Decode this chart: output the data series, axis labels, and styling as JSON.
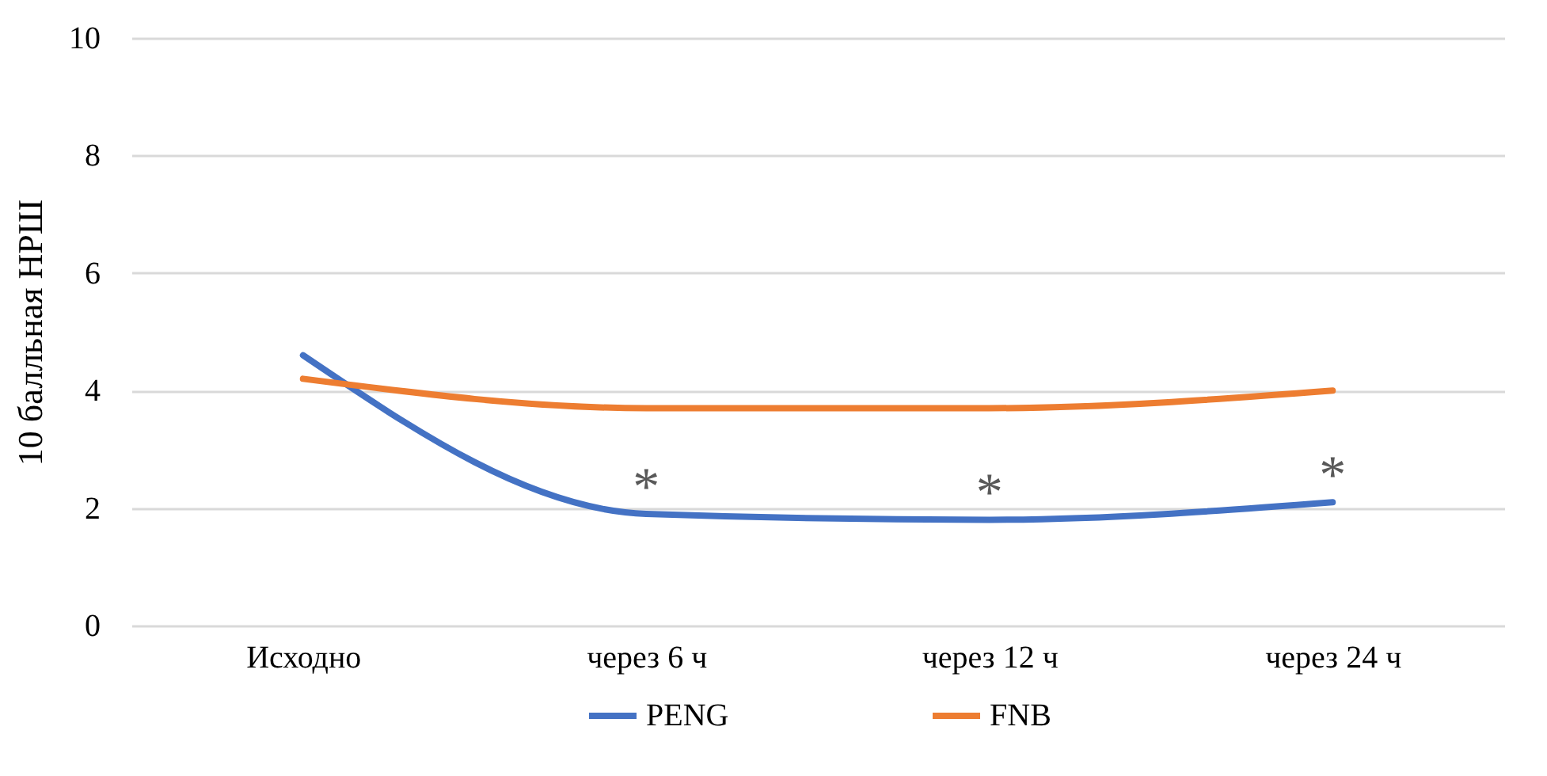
{
  "chart_data": {
    "type": "line",
    "ylabel": "10 балльная НРШ",
    "categories": [
      "Исходно",
      "через 6 ч",
      "через 12 ч",
      "через 24 ч"
    ],
    "series": [
      {
        "name": "PENG",
        "color": "#4472c4",
        "values": [
          4.6,
          1.9,
          1.8,
          2.1
        ]
      },
      {
        "name": "FNB",
        "color": "#ed7d31",
        "values": [
          4.2,
          3.7,
          3.7,
          4.0
        ]
      }
    ],
    "annotations": [
      {
        "text": "*",
        "x": "через 6 ч",
        "y": 1.9
      },
      {
        "text": "*",
        "x": "через 12 ч",
        "y": 1.8
      },
      {
        "text": "*",
        "x": "через 24 ч",
        "y": 2.1
      }
    ],
    "ylim": [
      0,
      10
    ],
    "yticks": [
      0,
      2,
      4,
      6,
      8,
      10
    ],
    "grid": "y",
    "legend": "bottom",
    "line_style": "solid"
  }
}
